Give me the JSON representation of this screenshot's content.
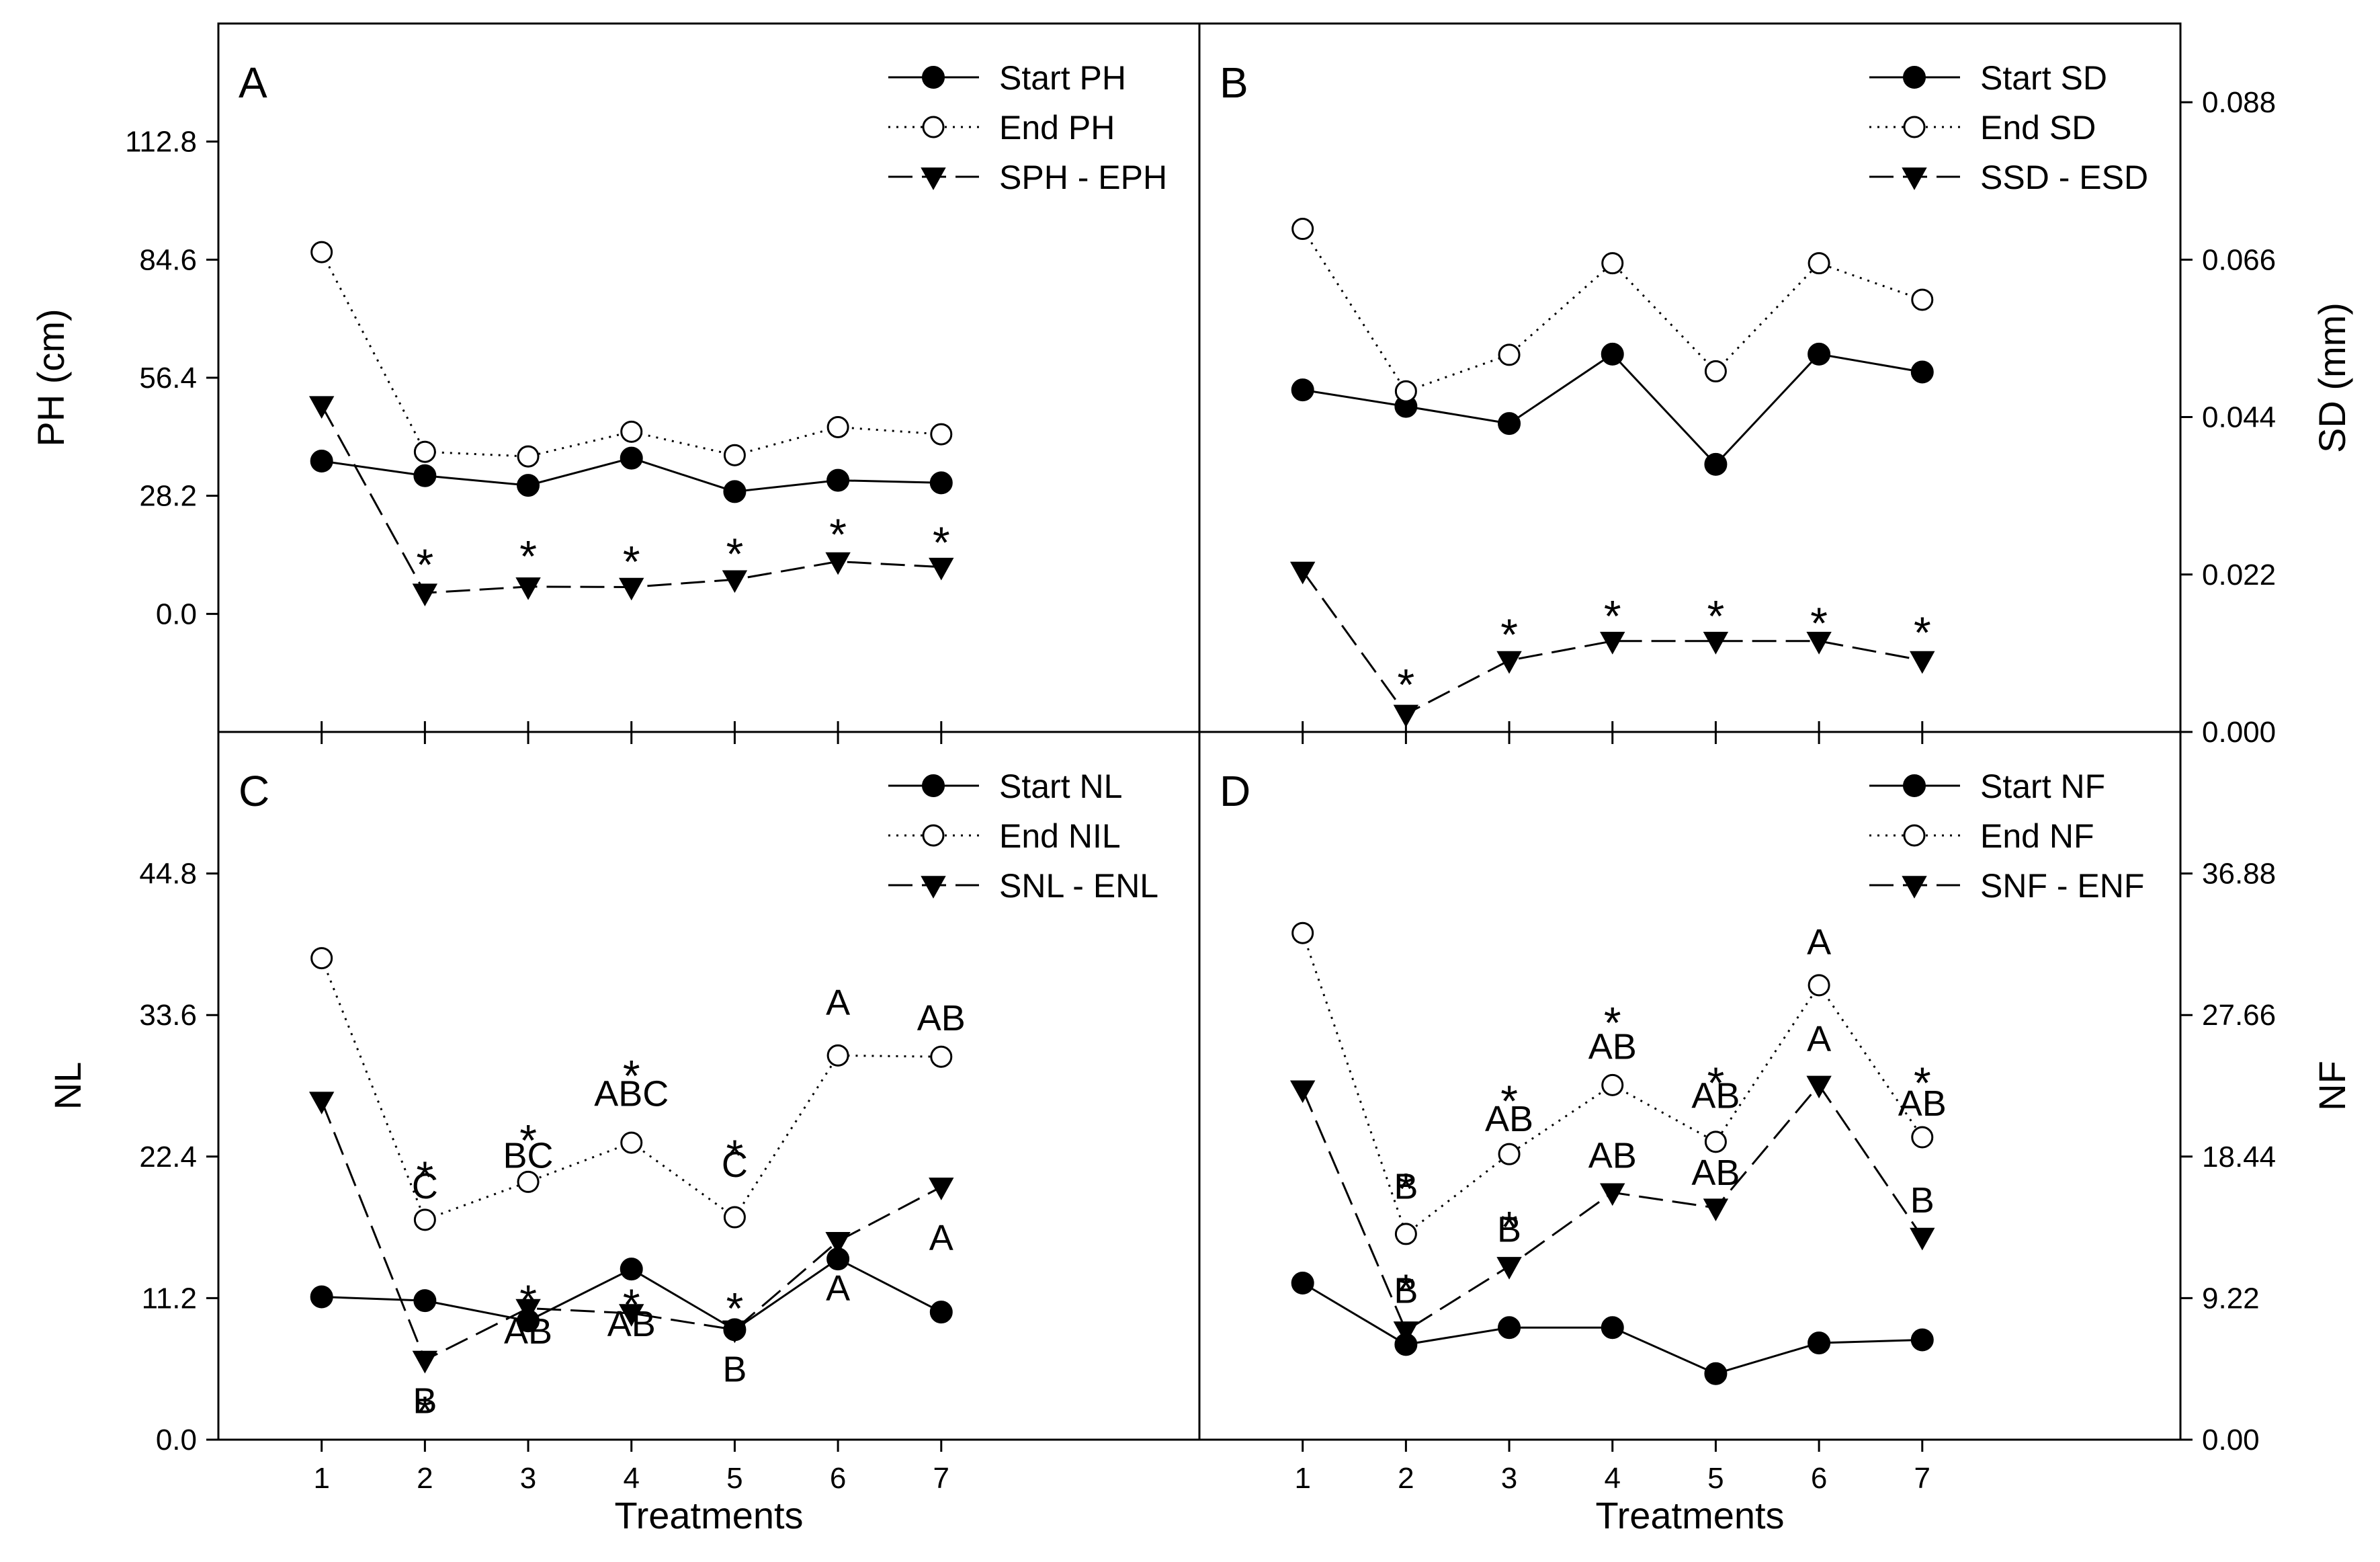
{
  "chart_data": [
    {
      "id": "A",
      "panel_label": "A",
      "type": "line",
      "xlabel": "Treatments",
      "ylabel": "PH (cm)",
      "y_axis_side": "left",
      "x": [
        1,
        2,
        3,
        4,
        5,
        6,
        7
      ],
      "ylim": [
        -28.2,
        141
      ],
      "yticks": [
        0.0,
        28.2,
        56.4,
        84.6,
        112.8
      ],
      "ytick_labels": [
        "0.0",
        "28.2",
        "56.4",
        "84.6",
        "112.8"
      ],
      "legend_position": "top-right",
      "series": [
        {
          "name": "Start PH",
          "style": "solid-filled-circle",
          "values": [
            36.5,
            33,
            30.7,
            37.2,
            29.2,
            31.9,
            31.3
          ]
        },
        {
          "name": "End PH",
          "style": "dotted-open-circle",
          "values": [
            86.4,
            38.7,
            37.6,
            43.5,
            37.9,
            44.6,
            42.9
          ]
        },
        {
          "name": "SPH - EPH",
          "style": "dashed-filled-triangle",
          "values": [
            49.8,
            5,
            6.5,
            6.4,
            8.2,
            12.5,
            11.2
          ]
        }
      ],
      "annotations": [
        {
          "x": 2,
          "y": 14.5,
          "text": "*",
          "kind": "star"
        },
        {
          "x": 3,
          "y": 16.5,
          "text": "*",
          "kind": "star"
        },
        {
          "x": 4,
          "y": 15.2,
          "text": "*",
          "kind": "star"
        },
        {
          "x": 5,
          "y": 17.1,
          "text": "*",
          "kind": "star"
        },
        {
          "x": 6,
          "y": 21.7,
          "text": "*",
          "kind": "star"
        },
        {
          "x": 7,
          "y": 19.8,
          "text": "*",
          "kind": "star"
        }
      ]
    },
    {
      "id": "B",
      "panel_label": "B",
      "type": "line",
      "xlabel": "Treatments",
      "ylabel": "SD (mm)",
      "y_axis_side": "right",
      "x": [
        1,
        2,
        3,
        4,
        5,
        6,
        7
      ],
      "ylim": [
        0,
        0.099
      ],
      "yticks": [
        0.0,
        0.022,
        0.044,
        0.066,
        0.088
      ],
      "ytick_labels": [
        "0.000",
        "0.022",
        "0.044",
        "0.066",
        "0.088"
      ],
      "legend_position": "top-right",
      "series": [
        {
          "name": "Start SD",
          "style": "solid-filled-circle",
          "values": [
            0.0478,
            0.0455,
            0.0431,
            0.0528,
            0.0374,
            0.0528,
            0.0503
          ]
        },
        {
          "name": "End SD",
          "style": "dotted-open-circle",
          "values": [
            0.0703,
            0.0476,
            0.0527,
            0.0655,
            0.0504,
            0.0655,
            0.0604
          ]
        },
        {
          "name": "SSD - ESD",
          "style": "dashed-filled-triangle",
          "values": [
            0.0225,
            0.0025,
            0.01,
            0.0127,
            0.0127,
            0.0127,
            0.01
          ]
        }
      ],
      "annotations": [
        {
          "x": 2,
          "y": 0.0082,
          "text": "*",
          "kind": "star"
        },
        {
          "x": 3,
          "y": 0.0152,
          "text": "*",
          "kind": "star"
        },
        {
          "x": 4,
          "y": 0.0178,
          "text": "*",
          "kind": "star"
        },
        {
          "x": 5,
          "y": 0.0178,
          "text": "*",
          "kind": "star"
        },
        {
          "x": 6,
          "y": 0.0168,
          "text": "*",
          "kind": "star"
        },
        {
          "x": 7,
          "y": 0.0155,
          "text": "*",
          "kind": "star"
        }
      ]
    },
    {
      "id": "C",
      "panel_label": "C",
      "type": "line",
      "xlabel": "Treatments",
      "ylabel": "NL",
      "y_axis_side": "left",
      "x": [
        1,
        2,
        3,
        4,
        5,
        6,
        7
      ],
      "xtick_labels": [
        "1",
        "2",
        "3",
        "4",
        "5",
        "6",
        "7"
      ],
      "ylim": [
        0,
        56
      ],
      "yticks": [
        0.0,
        11.2,
        22.4,
        33.6,
        44.8
      ],
      "ytick_labels": [
        "0.0",
        "11.2",
        "22.4",
        "33.6",
        "44.8"
      ],
      "legend_position": "top-right",
      "series": [
        {
          "name": "Start NL",
          "style": "solid-filled-circle",
          "values": [
            11.3,
            11,
            9.4,
            13.5,
            8.7,
            14.3,
            10.1
          ]
        },
        {
          "name": "End NIL",
          "style": "dotted-open-circle",
          "values": [
            38.1,
            17.4,
            20.4,
            23.5,
            17.6,
            30.4,
            30.3
          ]
        },
        {
          "name": "SNL - ENL",
          "style": "dashed-filled-triangle",
          "values": [
            26.8,
            6.3,
            10.4,
            10,
            8.7,
            15.7,
            20
          ]
        }
      ],
      "annotations": [
        {
          "x": 2,
          "y": 21.7,
          "text": "*",
          "kind": "star"
        },
        {
          "x": 2,
          "y": 19.1,
          "text": "C",
          "kind": "letter"
        },
        {
          "x": 2,
          "y": 3.1,
          "text": "*",
          "kind": "star"
        },
        {
          "x": 2,
          "y": 2.1,
          "text": "B",
          "kind": "letter"
        },
        {
          "x": 3,
          "y": 24.6,
          "text": "*",
          "kind": "star"
        },
        {
          "x": 3,
          "y": 21.5,
          "text": "BC",
          "kind": "letter"
        },
        {
          "x": 3,
          "y": 11.9,
          "text": "*",
          "kind": "star"
        },
        {
          "x": 3,
          "y": 7.6,
          "text": "AB",
          "kind": "letter"
        },
        {
          "x": 4,
          "y": 29.7,
          "text": "*",
          "kind": "star"
        },
        {
          "x": 4,
          "y": 26.4,
          "text": "ABC",
          "kind": "letter"
        },
        {
          "x": 4,
          "y": 8.2,
          "text": "AB",
          "kind": "letter"
        },
        {
          "x": 4,
          "y": 11.6,
          "text": "*",
          "kind": "star"
        },
        {
          "x": 5,
          "y": 23.4,
          "text": "*",
          "kind": "star"
        },
        {
          "x": 5,
          "y": 20.8,
          "text": "C",
          "kind": "letter"
        },
        {
          "x": 5,
          "y": 11.3,
          "text": "*",
          "kind": "star"
        },
        {
          "x": 5,
          "y": 4.6,
          "text": "B",
          "kind": "letter"
        },
        {
          "x": 6,
          "y": 33.6,
          "text": "A",
          "kind": "letter"
        },
        {
          "x": 6,
          "y": 11.0,
          "text": "A",
          "kind": "letter"
        },
        {
          "x": 7,
          "y": 32.4,
          "text": "AB",
          "kind": "letter"
        },
        {
          "x": 7,
          "y": 15.0,
          "text": "A",
          "kind": "letter"
        }
      ]
    },
    {
      "id": "D",
      "panel_label": "D",
      "type": "line",
      "xlabel": "Treatments",
      "ylabel": "NF",
      "y_axis_side": "right",
      "x": [
        1,
        2,
        3,
        4,
        5,
        6,
        7
      ],
      "xtick_labels": [
        "1",
        "2",
        "3",
        "4",
        "5",
        "6",
        "7"
      ],
      "ylim": [
        0,
        46.1
      ],
      "yticks": [
        0.0,
        9.22,
        18.44,
        27.66,
        36.88
      ],
      "ytick_labels": [
        "0.00",
        "9.22",
        "18.44",
        "27.66",
        "36.88"
      ],
      "legend_position": "top-right",
      "series": [
        {
          "name": "Start NF",
          "style": "solid-filled-circle",
          "values": [
            10.2,
            6.2,
            7.3,
            7.3,
            4.3,
            6.3,
            6.5
          ]
        },
        {
          "name": "End NF",
          "style": "dotted-open-circle",
          "values": [
            33,
            13.4,
            18.6,
            23.1,
            19.4,
            29.6,
            19.7
          ]
        },
        {
          "name": "SNF - ENF",
          "style": "dashed-filled-triangle",
          "values": [
            22.8,
            7.1,
            11.3,
            16.1,
            15.1,
            23.1,
            13.2
          ]
        }
      ],
      "annotations": [
        {
          "x": 2,
          "y": 17.1,
          "text": "*",
          "kind": "star"
        },
        {
          "x": 2,
          "y": 15.7,
          "text": "B",
          "kind": "letter"
        },
        {
          "x": 2,
          "y": 10.5,
          "text": "*",
          "kind": "star"
        },
        {
          "x": 2,
          "y": 8.9,
          "text": "B",
          "kind": "letter"
        },
        {
          "x": 3,
          "y": 22.8,
          "text": "*",
          "kind": "star"
        },
        {
          "x": 3,
          "y": 20.1,
          "text": "AB",
          "kind": "letter"
        },
        {
          "x": 3,
          "y": 14.6,
          "text": "*",
          "kind": "star"
        },
        {
          "x": 3,
          "y": 12.9,
          "text": "B",
          "kind": "letter"
        },
        {
          "x": 4,
          "y": 27.9,
          "text": "*",
          "kind": "star"
        },
        {
          "x": 4,
          "y": 24.8,
          "text": "AB",
          "kind": "letter"
        },
        {
          "x": 4,
          "y": 17.7,
          "text": "AB",
          "kind": "letter"
        },
        {
          "x": 5,
          "y": 24.0,
          "text": "*",
          "kind": "star"
        },
        {
          "x": 5,
          "y": 21.6,
          "text": "AB",
          "kind": "letter"
        },
        {
          "x": 5,
          "y": 16.6,
          "text": "AB",
          "kind": "letter"
        },
        {
          "x": 6,
          "y": 31.6,
          "text": "A",
          "kind": "letter"
        },
        {
          "x": 6,
          "y": 25.3,
          "text": "A",
          "kind": "letter"
        },
        {
          "x": 7,
          "y": 24.0,
          "text": "*",
          "kind": "star"
        },
        {
          "x": 7,
          "y": 21.1,
          "text": "AB",
          "kind": "letter"
        },
        {
          "x": 7,
          "y": 14.8,
          "text": "B",
          "kind": "letter"
        }
      ]
    }
  ]
}
